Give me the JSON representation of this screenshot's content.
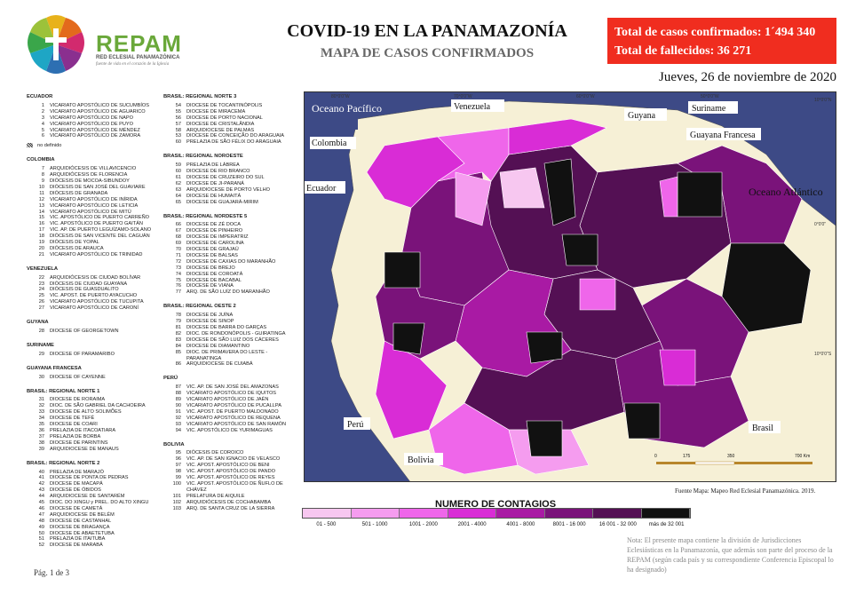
{
  "logo": {
    "name": "REPAM",
    "subtitle": "RED ECLESIAL PANAMAZÓNICA",
    "tagline": "fuente de vida en el corazón de la Iglesia"
  },
  "header": {
    "title": "COVID-19 EN LA PANAMAZONÍA",
    "subtitle": "MAPA DE CASOS CONFIRMADOS",
    "total_cases": "Total de casos confirmados: 1´494 340",
    "total_deaths": "Total de fallecidos: 36 271",
    "date": "Jueves, 26 de noviembre de 2020"
  },
  "left_sections": [
    {
      "title": "ECUADOR",
      "items": [
        {
          "n": "1",
          "name": "VICARIATO APOSTÓLICO DE SUCUMBÍOS"
        },
        {
          "n": "2",
          "name": "VICARIATO APOSTÓLICO DE AGUARICO"
        },
        {
          "n": "3",
          "name": "VICARIATO APOSTÓLICO DE NAPO"
        },
        {
          "n": "4",
          "name": "VICARIATO APOSTÓLICO DE PUYO"
        },
        {
          "n": "5",
          "name": "VICARIATO APOSTÓLICO DE MÉNDEZ"
        },
        {
          "n": "6",
          "name": "VICARIATO APOSTÓLICO DE ZAMORA"
        }
      ],
      "note": "no definido"
    },
    {
      "title": "COLOMBIA",
      "items": [
        {
          "n": "7",
          "name": "ARQUIDIÓCESIS DE VILLAVICENCIO"
        },
        {
          "n": "8",
          "name": "ARQUIDIÓCESIS DE FLORENCIA"
        },
        {
          "n": "9",
          "name": "DIÓCESIS DE MOCOA-SIBUNDOY"
        },
        {
          "n": "10",
          "name": "DIÓCESIS DE SAN JOSÉ DEL GUAVIARE"
        },
        {
          "n": "11",
          "name": "DIÓCESIS DE GRANADA"
        },
        {
          "n": "12",
          "name": "VICARIATO APOSTÓLICO DE INÍRIDA"
        },
        {
          "n": "13",
          "name": "VICARIATO APOSTÓLICO DE LETICIA"
        },
        {
          "n": "14",
          "name": "VICARIATO APOSTÓLICO DE MITÚ"
        },
        {
          "n": "15",
          "name": "VIC. APOSTÓLICO DE PUERTO CARREÑO"
        },
        {
          "n": "16",
          "name": "VIC. APOSTÓLICO DE PUERTO GAITÁN"
        },
        {
          "n": "17",
          "name": "VIC. AP. DE PUERTO LEGUÍZAMO-SOLANO"
        },
        {
          "n": "18",
          "name": "DIÓCESIS DE SAN VICENTE DEL CAGUÁN"
        },
        {
          "n": "19",
          "name": "DIÓCESIS DE YOPAL"
        },
        {
          "n": "20",
          "name": "DIÓCESIS DE ARAUCA"
        },
        {
          "n": "21",
          "name": "VICARIATO APOSTÓLICO DE TRINIDAD"
        }
      ]
    },
    {
      "title": "VENEZUELA",
      "items": [
        {
          "n": "22",
          "name": "ARQUIDIÓCESIS DE CIUDAD BOLÍVAR"
        },
        {
          "n": "23",
          "name": "DIÓCESIS DE CIUDAD GUAYANA"
        },
        {
          "n": "24",
          "name": "DIÓCESIS DE GUASDUALITO"
        },
        {
          "n": "25",
          "name": "VIC. APOST. DE PUERTO AYACUCHO"
        },
        {
          "n": "26",
          "name": "VICARIATO APOSTÓLICO DE TUCUPITA"
        },
        {
          "n": "27",
          "name": "VICARIATO APOSTÓLICO DE CARONÍ"
        }
      ]
    },
    {
      "title": "GUYANA",
      "items": [
        {
          "n": "28",
          "name": "DIOCESE OF GEORGETOWN"
        }
      ]
    },
    {
      "title": "SURINAME",
      "items": [
        {
          "n": "29",
          "name": "DIOCESE OF PARAMARIBO"
        }
      ]
    },
    {
      "title": "GUAYANA FRANCESA",
      "items": [
        {
          "n": "30",
          "name": "DIOCESE OF CAYENNE"
        }
      ]
    },
    {
      "title": "BRASIL: REGIONAL NORTE 1",
      "items": [
        {
          "n": "31",
          "name": "DIOCESE DE RORAIMA"
        },
        {
          "n": "32",
          "name": "DIOC. DE SÃO GABRIEL DA CACHOEIRA"
        },
        {
          "n": "33",
          "name": "DIOCESE DE ALTO SOLIMÕES"
        },
        {
          "n": "34",
          "name": "DIOCESE DE TEFÉ"
        },
        {
          "n": "35",
          "name": "DIOCESE DE COARI"
        },
        {
          "n": "36",
          "name": "PRELAZIA DE ITACOATIARA"
        },
        {
          "n": "37",
          "name": "PRELAZIA DE BORBA"
        },
        {
          "n": "38",
          "name": "DIOCESE DE PARINTINS"
        },
        {
          "n": "39",
          "name": "ARQUIDIOCESE DE MANAUS"
        }
      ]
    },
    {
      "title": "BRASIL: REGIONAL NORTE 2",
      "items": [
        {
          "n": "40",
          "name": "PRELAZIA DE MARAJÓ"
        },
        {
          "n": "41",
          "name": "DIOCESE DE PONTA DE PEDRAS"
        },
        {
          "n": "42",
          "name": "DIOCESE DE MACAPÁ"
        },
        {
          "n": "43",
          "name": "DIOCESE DE ÓBIDOS"
        },
        {
          "n": "44",
          "name": "ARQUIDIOCESE DE SANTARÉM"
        },
        {
          "n": "45",
          "name": "DIOC. DO XINGU y PREL. DO ALTO XINGU"
        },
        {
          "n": "46",
          "name": "DIOCESE DE CAMETÁ"
        },
        {
          "n": "47",
          "name": "ARQUIDIOCESE DE BELÉM"
        },
        {
          "n": "48",
          "name": "DIOCESE DE CASTANHAL"
        },
        {
          "n": "49",
          "name": "DIOCESE DE BRAGANÇA"
        },
        {
          "n": "50",
          "name": "DIOCESE DE ABAETETUBA"
        },
        {
          "n": "51",
          "name": "PRELAZIA DE ITAITUBA"
        },
        {
          "n": "52",
          "name": "DIOCESE DE MARABÁ"
        }
      ]
    }
  ],
  "right_sections": [
    {
      "title": "BRASIL: REGIONAL NORTE 3",
      "items": [
        {
          "n": "54",
          "name": "DIOCESE DE TOCANTINÓPOLIS"
        },
        {
          "n": "55",
          "name": "DIOCESE DE MIRACEMA"
        },
        {
          "n": "56",
          "name": "DIOCESE DE PORTO NACIONAL"
        },
        {
          "n": "57",
          "name": "DIOCESE DE CRISTALÂNDIA"
        },
        {
          "n": "58",
          "name": "ARQUIDIOCESE DE PALMAS"
        },
        {
          "n": "53",
          "name": "DIOCESE DE CONCEIÇÃO DO ARAGUAIA"
        },
        {
          "n": "60",
          "name": "PRELAZIA DE SÃO FÉLIX DO ARAGUAIA"
        }
      ]
    },
    {
      "title": "BRASIL: REGIONAL NOROESTE",
      "items": [
        {
          "n": "59",
          "name": "PRELAZIA DE LÁBREA"
        },
        {
          "n": "60",
          "name": "DIOCESE DE RIO BRANCO"
        },
        {
          "n": "61",
          "name": "DIOCESE DE CRUZEIRO DO SUL"
        },
        {
          "n": "62",
          "name": "DIOCESE DE JI-PARANÁ"
        },
        {
          "n": "63",
          "name": "ARQUIDIOCESE DE PORTO VELHO"
        },
        {
          "n": "64",
          "name": "DIOCESE DE HUMAITÁ"
        },
        {
          "n": "65",
          "name": "DIOCESE DE GUAJARÁ-MIRIM"
        }
      ]
    },
    {
      "title": "BRASIL: REGIONAL NORDESTE 5",
      "items": [
        {
          "n": "66",
          "name": "DIOCESE DE ZÉ DOCA"
        },
        {
          "n": "67",
          "name": "DIOCESE DE PINHEIRO"
        },
        {
          "n": "68",
          "name": "DIOCESE DE IMPERATRIZ"
        },
        {
          "n": "69",
          "name": "DIOCESE DE CAROLINA"
        },
        {
          "n": "70",
          "name": "DIOCESE DE GRAJAÚ"
        },
        {
          "n": "71",
          "name": "DIOCESE DE BALSAS"
        },
        {
          "n": "72",
          "name": "DIOCESE DE CAXIAS DO MARANHÃO"
        },
        {
          "n": "73",
          "name": "DIOCESE DE BREJO"
        },
        {
          "n": "74",
          "name": "DIOCESE DE COROATÁ"
        },
        {
          "n": "75",
          "name": "DIOCESE DE BACABAL"
        },
        {
          "n": "76",
          "name": "DIOCESE DE VIANA"
        },
        {
          "n": "77",
          "name": "ARQ. DE SÃO LUÍZ DO MARANHÃO"
        }
      ]
    },
    {
      "title": "BRASIL: REGIONAL OESTE 2",
      "items": [
        {
          "n": "78",
          "name": "DIOCESE DE JUÍNA"
        },
        {
          "n": "79",
          "name": "DIOCESE DE SINOP"
        },
        {
          "n": "81",
          "name": "DIOCESE DE BARRA DO GARÇAS"
        },
        {
          "n": "82",
          "name": "DIOC. DE RONDONÓPOLIS - GUIRATINGA"
        },
        {
          "n": "83",
          "name": "DIOCESE DE SÃO LUIZ DOS CÁCERES"
        },
        {
          "n": "84",
          "name": "DIOCESE DE DIAMANTINO"
        },
        {
          "n": "85",
          "name": "DIOC. DE PRIMAVERA DO LESTE - PARANATINGA"
        },
        {
          "n": "86",
          "name": "ARQUIDIOCESE DE CUIABÁ"
        }
      ]
    },
    {
      "title": "PERÚ",
      "items": [
        {
          "n": "87",
          "name": "VIC. AP. DE SAN JOSÉ DEL AMAZONAS"
        },
        {
          "n": "88",
          "name": "VICARIATO APOSTÓLICO DE IQUITOS"
        },
        {
          "n": "89",
          "name": "VICARIATO APOSTÓLICO DE JAÉN"
        },
        {
          "n": "90",
          "name": "VICARIATO APOSTÓLICO DE PUCALLPA"
        },
        {
          "n": "91",
          "name": "VIC. APOST. DE PUERTO MALDONADO"
        },
        {
          "n": "92",
          "name": "VICARIATO APOSTÓLICO DE REQUENA"
        },
        {
          "n": "93",
          "name": "VICARIATO APOSTÓLICO DE SAN RAMÓN"
        },
        {
          "n": "94",
          "name": "VIC. APOSTÓLICO DE YURIMAGUAS"
        }
      ]
    },
    {
      "title": "BOLIVIA",
      "items": [
        {
          "n": "95",
          "name": "DIÓCESIS DE COROICO"
        },
        {
          "n": "96",
          "name": "VIC. AP. DE SAN IGNACIO DE VELASCO"
        },
        {
          "n": "97",
          "name": "VIC. APOST. APOSTÓLICO DE BENI"
        },
        {
          "n": "98",
          "name": "VIC. APOST. APOSTÓLICO DE PANDO"
        },
        {
          "n": "99",
          "name": "VIC. APOST. APOSTÓLICO DE REYES"
        },
        {
          "n": "100",
          "name": "VIC. APOST. APOSTÓLICO DE ÑUFLO DE CHÁVEZ"
        },
        {
          "n": "101",
          "name": "PRELATURA DE AIQUILE"
        },
        {
          "n": "102",
          "name": "ARQUIDIÓCESIS DE COCHABAMBA"
        },
        {
          "n": "103",
          "name": "ARQ. DE SANTA CRUZ DE LA SIERRA"
        }
      ]
    }
  ],
  "map": {
    "ocean_color": "#3d4a86",
    "land_color": "#f6f0d6",
    "place_labels": {
      "oceano_pacifico": "Oceano Pacífico",
      "colombia": "Colombia",
      "venezuela": "Venezuela",
      "guyana": "Guyana",
      "suriname": "Suriname",
      "guayana_francesa": "Guayana Francesa",
      "ecuador": "Ecuador",
      "oceano_atlantico": "Oceano Atlántico",
      "peru": "Perú",
      "bolivia": "Bolivia",
      "brasil": "Brasil"
    },
    "lon_ticks": [
      "80°0'0\"W",
      "70°0'0\"W",
      "60°0'0\"W",
      "50°0'0\"W"
    ],
    "lat_ticks": [
      "10°0'0\"N",
      "0°0'0\"",
      "10°0'0\"S"
    ],
    "scale_labels": [
      "0",
      "175",
      "350",
      "700 Km"
    ]
  },
  "legend": {
    "title": "NUMERO DE CONTAGIOS",
    "bins": [
      {
        "label": "01 - 500",
        "color": "#f7c7f0"
      },
      {
        "label": "501 - 1000",
        "color": "#f59cef"
      },
      {
        "label": "1001 - 2000",
        "color": "#ef66ea"
      },
      {
        "label": "2001 - 4000",
        "color": "#d92cd6"
      },
      {
        "label": "4001 - 8000",
        "color": "#a91aa4"
      },
      {
        "label": "8001 - 16 000",
        "color": "#7a137a"
      },
      {
        "label": "16 001 - 32 000",
        "color": "#541054"
      },
      {
        "label": "más de 32 001",
        "color": "#111111"
      }
    ]
  },
  "source": "Fuente Mapa: Mapeo Red Eclesial Panamazónica. 2019.",
  "nota": "Nota: El presente mapa contiene la división de Jurisdicciones Eclesiásticas en la Panamazonía, que además son parte del proceso de la REPAM (según cada país y su correspondiente Conferencia Episcopal lo ha designado)",
  "page": "Pág. 1 de 3"
}
